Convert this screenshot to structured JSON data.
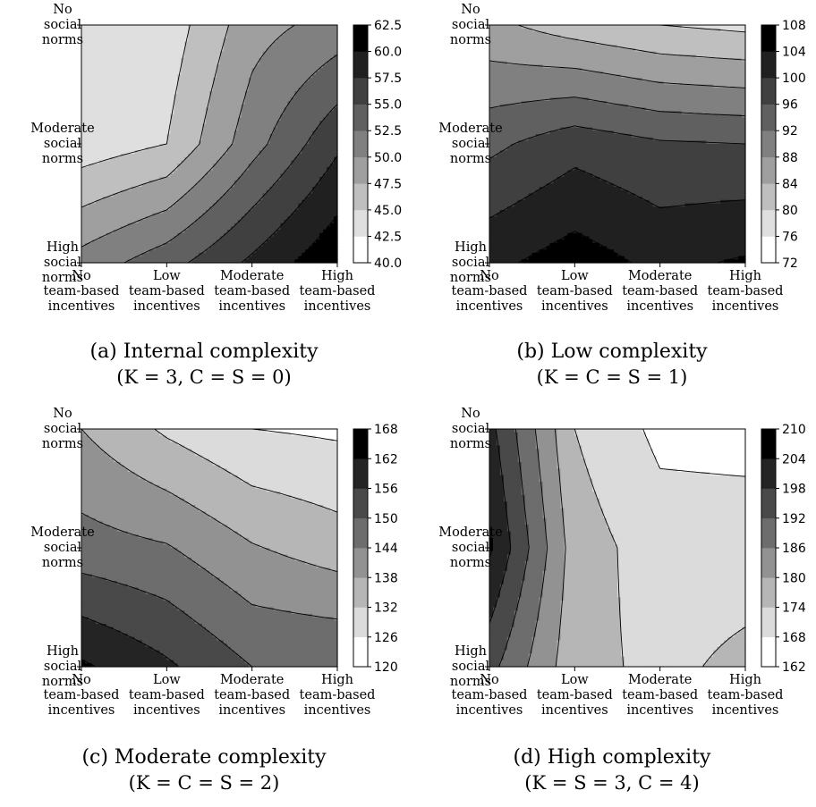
{
  "axis_labels": {
    "x": [
      {
        "lines": [
          "No",
          "team-based",
          "incentives"
        ]
      },
      {
        "lines": [
          "Low",
          "team-based",
          "incentives"
        ]
      },
      {
        "lines": [
          "Moderate",
          "team-based",
          "incentives"
        ]
      },
      {
        "lines": [
          "High",
          "team-based",
          "incentives"
        ]
      }
    ],
    "y_top_to_bottom": [
      {
        "lines": [
          "No",
          "social",
          "norms"
        ]
      },
      {
        "lines": [
          "Moderate",
          "social",
          "norms"
        ]
      },
      {
        "lines": [
          "High",
          "social",
          "norms"
        ]
      }
    ]
  },
  "panels": [
    {
      "caption": "(a) Internal complexity",
      "subcaption": "(K = 3, C = S = 0)"
    },
    {
      "caption": "(b) Low complexity",
      "subcaption": "(K = C = S = 1)"
    },
    {
      "caption": "(c) Moderate complexity",
      "subcaption": "(K = C = S = 2)"
    },
    {
      "caption": "(d) High complexity",
      "subcaption": "(K = S = 3, C = 4)"
    }
  ],
  "chart_data": [
    {
      "type": "heatmap",
      "subtype": "filled-contour",
      "colormap": "greys",
      "x_categories": [
        "No team-based incentives",
        "Low team-based incentives",
        "Moderate team-based incentives",
        "High team-based incentives"
      ],
      "y_categories": [
        "No social norms",
        "Moderate social norms",
        "High social norms"
      ],
      "levels": [
        40.0,
        42.5,
        45.0,
        47.5,
        50.0,
        52.5,
        55.0,
        57.5,
        60.0,
        62.5
      ],
      "colorbar_ticks": [
        "40.0",
        "42.5",
        "45.0",
        "47.5",
        "50.0",
        "52.5",
        "55.0",
        "57.5",
        "60.0",
        "62.5"
      ],
      "values_rows_top_to_bottom": [
        [
          43.5,
          43.5,
          49.0,
          51.0
        ],
        [
          43.5,
          45.0,
          51.5,
          57.0
        ],
        [
          51.0,
          54.0,
          58.0,
          62.0
        ]
      ]
    },
    {
      "type": "heatmap",
      "subtype": "filled-contour",
      "colormap": "greys",
      "x_categories": [
        "No team-based incentives",
        "Low team-based incentives",
        "Moderate team-based incentives",
        "High team-based incentives"
      ],
      "y_categories": [
        "No social norms",
        "Moderate social norms",
        "High social norms"
      ],
      "levels": [
        72,
        76,
        80,
        84,
        88,
        92,
        96,
        100,
        104,
        108
      ],
      "colorbar_ticks": [
        "72",
        "76",
        "80",
        "84",
        "88",
        "92",
        "96",
        "100",
        "104",
        "108"
      ],
      "values_rows_top_to_bottom": [
        [
          85.0,
          82.0,
          80.0,
          79.0
        ],
        [
          95.0,
          98.5,
          96.5,
          96.0
        ],
        [
          103.0,
          106.0,
          103.0,
          104.5
        ]
      ]
    },
    {
      "type": "heatmap",
      "subtype": "filled-contour",
      "colormap": "greys",
      "x_categories": [
        "No team-based incentives",
        "Low team-based incentives",
        "Moderate team-based incentives",
        "High team-based incentives"
      ],
      "y_categories": [
        "No social norms",
        "Moderate social norms",
        "High social norms"
      ],
      "levels": [
        120,
        126,
        132,
        138,
        144,
        150,
        156,
        162,
        168
      ],
      "colorbar_ticks": [
        "120",
        "126",
        "132",
        "138",
        "144",
        "150",
        "156",
        "162",
        "168"
      ],
      "values_rows_top_to_bottom": [
        [
          138.0,
          131.0,
          126.0,
          125.0
        ],
        [
          146.5,
          144.5,
          138.5,
          135.0
        ],
        [
          163.0,
          157.0,
          150.0,
          150.0
        ]
      ]
    },
    {
      "type": "heatmap",
      "subtype": "filled-contour",
      "colormap": "greys",
      "x_categories": [
        "No team-based incentives",
        "Low team-based incentives",
        "Moderate team-based incentives",
        "High team-based incentives"
      ],
      "y_categories": [
        "No social norms",
        "Moderate social norms",
        "High social norms"
      ],
      "levels": [
        162,
        168,
        174,
        180,
        186,
        192,
        198,
        204,
        210
      ],
      "colorbar_ticks": [
        "162",
        "168",
        "174",
        "180",
        "186",
        "192",
        "198",
        "204",
        "210"
      ],
      "values_rows_top_to_bottom": [
        [
          200.0,
          174.0,
          166.5,
          166.0
        ],
        [
          205.0,
          177.0,
          171.0,
          171.0
        ],
        [
          194.0,
          176.0,
          172.5,
          175.5
        ]
      ]
    }
  ]
}
